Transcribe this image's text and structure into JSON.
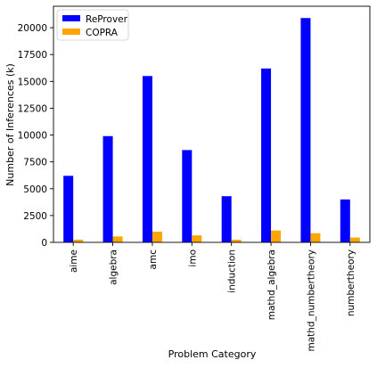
{
  "chart_data": {
    "type": "bar",
    "categories": [
      "aime",
      "algebra",
      "amc",
      "imo",
      "induction",
      "mathd_algebra",
      "mathd_numbertheory",
      "numbertheory"
    ],
    "series": [
      {
        "name": "ReProver",
        "color": "#0000ff",
        "values": [
          6200,
          9900,
          15500,
          8600,
          4300,
          16200,
          20900,
          4000
        ]
      },
      {
        "name": "COPRA",
        "color": "#ffa500",
        "values": [
          250,
          550,
          1000,
          650,
          250,
          1100,
          850,
          450
        ]
      }
    ],
    "xlabel": "Problem Category",
    "ylabel": "Number of Inferences (k)",
    "ylim": [
      0,
      22000
    ],
    "yticks": [
      0,
      2500,
      5000,
      7500,
      10000,
      12500,
      15000,
      17500,
      20000
    ],
    "ytick_labels": [
      "0",
      "2500",
      "5000",
      "7500",
      "10000",
      "12500",
      "15000",
      "17500",
      "20000"
    ],
    "legend_position": "top-left",
    "grid": false
  }
}
